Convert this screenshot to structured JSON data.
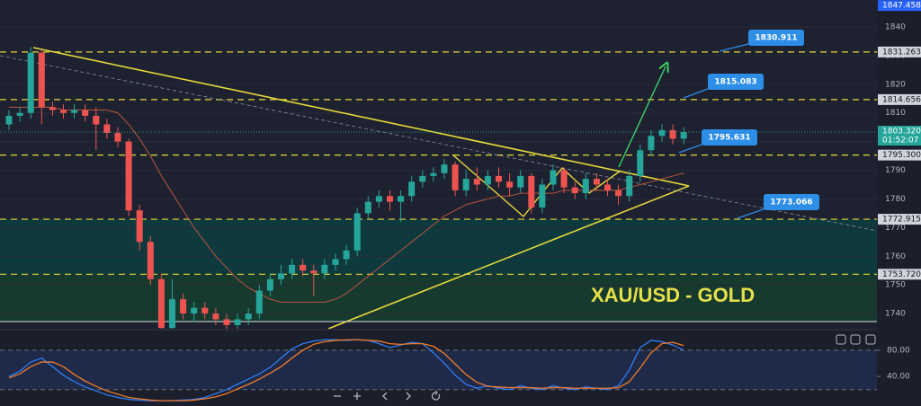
{
  "chart_data": [
    {
      "type": "candlestick",
      "title": "XAU/USD - GOLD",
      "categories": [
        null,
        null,
        null,
        null,
        null,
        null,
        null,
        null,
        null,
        null,
        null,
        null,
        null,
        null,
        null,
        null,
        null,
        null,
        null,
        null,
        null,
        null,
        null,
        null,
        null,
        null,
        null,
        null,
        null,
        null,
        null,
        null,
        null,
        null,
        null,
        null,
        null,
        null,
        null,
        null,
        null,
        null,
        null,
        null,
        null,
        null,
        null,
        null,
        null,
        null,
        null,
        null,
        null,
        null,
        null,
        null,
        null,
        null,
        null,
        null,
        null,
        null,
        null
      ],
      "open": [
        1806,
        1809,
        1810,
        1831,
        1812,
        1811,
        1810,
        1811,
        1809,
        1806,
        1803,
        1800,
        1776,
        1765,
        1752,
        1735,
        1745,
        1740,
        1742,
        1740,
        1738,
        1736,
        1738,
        1740,
        1748,
        1752,
        1754,
        1757,
        1755,
        1754,
        1757,
        1759,
        1762,
        1775,
        1779,
        1781,
        1779,
        1781,
        1786,
        1788,
        1789,
        1792,
        1783,
        1787,
        1785,
        1788,
        1786,
        1784,
        1788,
        1777,
        1785,
        1790,
        1784,
        1782,
        1787,
        1785,
        1783,
        1781,
        1788,
        1797,
        1802,
        1804,
        1801
      ],
      "high": [
        1811,
        1812,
        1833,
        1832,
        1814,
        1813,
        1813,
        1813,
        1812,
        1808,
        1805,
        1801,
        1778,
        1767,
        1754,
        1752,
        1747,
        1744,
        1744,
        1742,
        1740,
        1740,
        1742,
        1750,
        1754,
        1757,
        1759,
        1759,
        1757,
        1759,
        1761,
        1764,
        1777,
        1781,
        1783,
        1783,
        1783,
        1788,
        1790,
        1791,
        1794,
        1793,
        1790,
        1791,
        1790,
        1791,
        1789,
        1790,
        1789,
        1787,
        1792,
        1791,
        1786,
        1789,
        1789,
        1787,
        1785,
        1790,
        1799,
        1804,
        1806,
        1806,
        1805
      ],
      "low": [
        1804,
        1807,
        1808,
        1806,
        1809,
        1808,
        1808,
        1807,
        1797,
        1801,
        1798,
        1774,
        1762,
        1750,
        1733,
        1733,
        1738,
        1737,
        1738,
        1736,
        1734,
        1734,
        1736,
        1738,
        1746,
        1750,
        1752,
        1753,
        1746,
        1752,
        1755,
        1757,
        1760,
        1773,
        1777,
        1776,
        1772,
        1779,
        1784,
        1786,
        1787,
        1781,
        1781,
        1783,
        1783,
        1784,
        1781,
        1782,
        1775,
        1775,
        1783,
        1782,
        1780,
        1780,
        1783,
        1781,
        1778,
        1779,
        1786,
        1795,
        1800,
        1799,
        1799
      ],
      "close": [
        1809,
        1810,
        1831,
        1812,
        1811,
        1810,
        1811,
        1809,
        1806,
        1803,
        1800,
        1776,
        1765,
        1752,
        1735,
        1745,
        1740,
        1742,
        1740,
        1738,
        1736,
        1738,
        1740,
        1748,
        1752,
        1754,
        1757,
        1755,
        1754,
        1757,
        1759,
        1762,
        1775,
        1779,
        1781,
        1779,
        1781,
        1786,
        1788,
        1789,
        1792,
        1783,
        1787,
        1785,
        1788,
        1786,
        1784,
        1788,
        1777,
        1785,
        1790,
        1784,
        1782,
        1787,
        1785,
        1783,
        1781,
        1788,
        1797,
        1802,
        1804,
        1801,
        1803.32
      ],
      "up_color": "#26a69a",
      "down_color": "#ef5350",
      "ma": {
        "color": "#b8553f",
        "values": [
          1812,
          1812,
          1812,
          1812,
          1812,
          1811,
          1811,
          1811,
          1811,
          1811,
          1810,
          1806,
          1801,
          1795,
          1788,
          1782,
          1776,
          1770,
          1765,
          1760,
          1756,
          1752,
          1749,
          1747,
          1745,
          1744,
          1744,
          1744,
          1744,
          1744,
          1745,
          1747,
          1750,
          1753,
          1756,
          1759,
          1762,
          1765,
          1768,
          1771,
          1774,
          1776,
          1778,
          1779,
          1780,
          1781,
          1781,
          1782,
          1782,
          1782,
          1782,
          1783,
          1783,
          1783,
          1783,
          1783,
          1783,
          1784,
          1785,
          1786,
          1787,
          1788,
          1789
        ]
      },
      "levels": [
        1831.263,
        1814.656,
        {
          "value": 1795.3,
          "label": "1795.300"
        },
        1772.915,
        {
          "value": 1753.72,
          "label": "1753.720"
        }
      ],
      "level_color": "#e6d83a",
      "callouts": [
        1830.911,
        1815.083,
        1795.631,
        1773.066
      ],
      "top_price": 1847.458,
      "last_price": {
        "value": 1803.32,
        "label": "1803.320",
        "timer": "01:52:07"
      },
      "ylim": [
        1734.7,
        1849.4
      ],
      "yticks": [
        1740,
        1750,
        1760,
        1770,
        1780,
        1790,
        1800,
        1810,
        1820,
        1830,
        1840
      ]
    },
    {
      "type": "stochastic",
      "series": [
        {
          "color": "#2f7df6",
          "values": [
            40,
            48,
            62,
            68,
            55,
            42,
            32,
            24,
            18,
            12,
            8,
            5,
            4,
            3,
            3,
            3,
            4,
            5,
            8,
            14,
            20,
            28,
            36,
            44,
            54,
            68,
            82,
            90,
            94,
            96,
            96,
            95,
            96,
            95,
            90,
            84,
            88,
            92,
            90,
            76,
            60,
            42,
            28,
            22,
            26,
            22,
            20,
            26,
            22,
            20,
            26,
            22,
            20,
            24,
            22,
            20,
            26,
            50,
            84,
            95,
            93,
            88,
            80
          ]
        },
        {
          "color": "#f07a2a",
          "values": [
            38,
            44,
            55,
            62,
            62,
            55,
            43,
            33,
            25,
            18,
            13,
            8,
            6,
            4,
            3,
            3,
            3,
            4,
            6,
            9,
            14,
            21,
            28,
            36,
            45,
            55,
            68,
            80,
            89,
            93,
            95,
            96,
            96,
            95,
            94,
            90,
            89,
            90,
            90,
            86,
            75,
            59,
            43,
            31,
            25,
            24,
            23,
            23,
            23,
            22,
            23,
            23,
            22,
            22,
            22,
            22,
            23,
            32,
            53,
            76,
            90,
            92,
            87
          ]
        }
      ],
      "ylim": [
        -5,
        110
      ],
      "yticks": [
        {
          "value": 80,
          "label": "80.00"
        },
        {
          "value": 40,
          "label": "40.00"
        }
      ],
      "bands": [
        20,
        80
      ]
    }
  ]
}
